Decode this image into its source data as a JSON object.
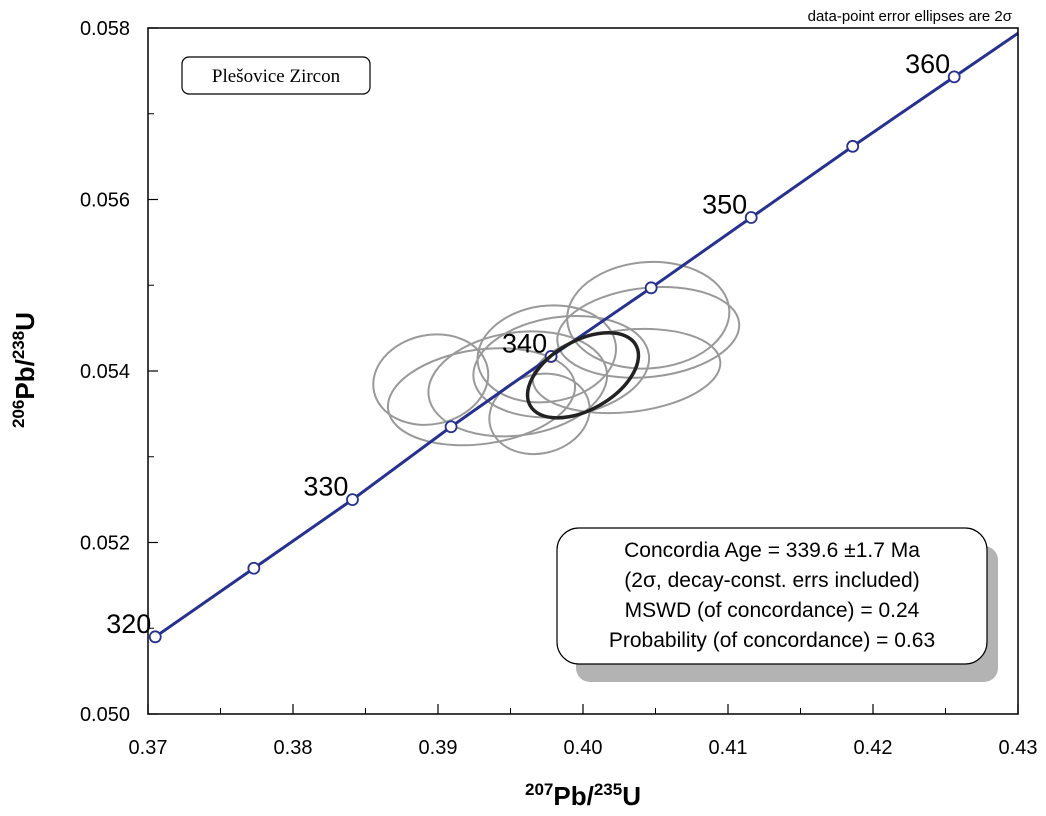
{
  "chart_data": {
    "type": "scatter",
    "title": "Plešovice Zircon",
    "note": "data-point error ellipses are 2σ",
    "xlabel": {
      "prefix": "207",
      "base": "Pb/",
      "mid": "235",
      "suffix": "U"
    },
    "ylabel": {
      "prefix": "206",
      "base": "Pb/",
      "mid": "238",
      "suffix": "U"
    },
    "xlim": [
      0.37,
      0.43
    ],
    "ylim": [
      0.05,
      0.058
    ],
    "x_ticks": [
      0.37,
      0.38,
      0.39,
      0.4,
      0.41,
      0.42,
      0.43
    ],
    "x_tick_labels": [
      "0.37",
      "0.38",
      "0.39",
      "0.40",
      "0.41",
      "0.42",
      "0.43"
    ],
    "x_minor_ticks": [
      0.375,
      0.385,
      0.395,
      0.405,
      0.415,
      0.425
    ],
    "y_ticks": [
      0.05,
      0.052,
      0.054,
      0.056,
      0.058
    ],
    "y_tick_labels": [
      "0.050",
      "0.052",
      "0.054",
      "0.056",
      "0.058"
    ],
    "y_minor_ticks": [
      0.051,
      0.053,
      0.055,
      0.057
    ],
    "grid": false,
    "concordia": {
      "color": "#27318f",
      "points": [
        {
          "age": 320,
          "x": 0.3705,
          "y": 0.0509
        },
        {
          "age": 325,
          "x": 0.3773,
          "y": 0.0517
        },
        {
          "age": 330,
          "x": 0.3841,
          "y": 0.0525
        },
        {
          "age": 335,
          "x": 0.3909,
          "y": 0.05335
        },
        {
          "age": 340,
          "x": 0.3978,
          "y": 0.05417
        },
        {
          "age": 345,
          "x": 0.4047,
          "y": 0.05497
        },
        {
          "age": 350,
          "x": 0.4116,
          "y": 0.05579
        },
        {
          "age": 355,
          "x": 0.4186,
          "y": 0.05662
        },
        {
          "age": 360,
          "x": 0.4256,
          "y": 0.05743
        }
      ],
      "labeled_ages": [
        "320",
        "330",
        "340",
        "350",
        "360"
      ]
    },
    "ellipses": [
      {
        "cx": 0.393,
        "cy": 0.0537,
        "rx": 0.0065,
        "ry": 0.00055,
        "rot": -8
      },
      {
        "cx": 0.3955,
        "cy": 0.05385,
        "rx": 0.0062,
        "ry": 0.0006,
        "rot": -8
      },
      {
        "cx": 0.3985,
        "cy": 0.05405,
        "rx": 0.0061,
        "ry": 0.00058,
        "rot": -8
      },
      {
        "cx": 0.3895,
        "cy": 0.0539,
        "rx": 0.004,
        "ry": 0.00052,
        "rot": -12
      },
      {
        "cx": 0.397,
        "cy": 0.0535,
        "rx": 0.0035,
        "ry": 0.00046,
        "rot": -14
      },
      {
        "cx": 0.3975,
        "cy": 0.0542,
        "rx": 0.0048,
        "ry": 0.00056,
        "rot": -8
      },
      {
        "cx": 0.4045,
        "cy": 0.05445,
        "rx": 0.0063,
        "ry": 0.00052,
        "rot": -6
      },
      {
        "cx": 0.4045,
        "cy": 0.05465,
        "rx": 0.0056,
        "ry": 0.00062,
        "rot": -4
      },
      {
        "cx": 0.403,
        "cy": 0.054,
        "rx": 0.0065,
        "ry": 0.00048,
        "rot": -6
      }
    ],
    "concordia_ellipse": {
      "cx": 0.4,
      "cy": 0.05395,
      "rx": 0.0042,
      "ry": 0.0004,
      "rot": -30
    },
    "ellipse_color": "#999999",
    "result_box": {
      "lines": [
        "Concordia Age = 339.6 ±1.7 Ma",
        "(2σ, decay-const. errs included)",
        "MSWD (of concordance) = 0.24",
        "Probability (of concordance) = 0.63"
      ]
    }
  }
}
